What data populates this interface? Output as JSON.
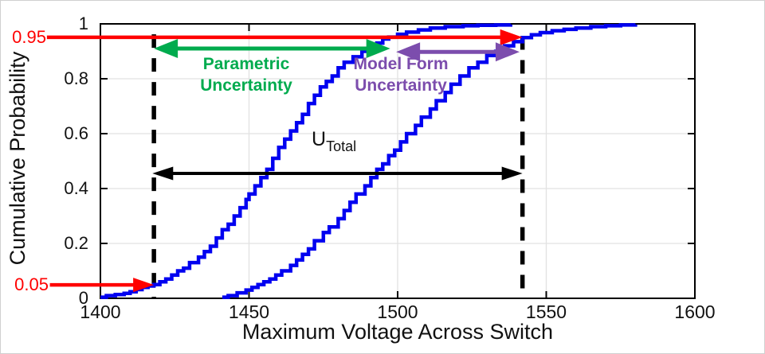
{
  "chart_data": {
    "type": "line",
    "subtype": "empirical_cdf_step",
    "title": "",
    "xlabel": "Maximum Voltage Across Switch",
    "ylabel": "Cumulative Probability",
    "xlim": [
      1400,
      1600
    ],
    "ylim": [
      0,
      1
    ],
    "grid": true,
    "legend": "none",
    "x_ticks": [
      1400,
      1450,
      1500,
      1550,
      1600
    ],
    "x_tick_labels": [
      "1400",
      "1450",
      "1500",
      "1550",
      "1600"
    ],
    "y_ticks": [
      0,
      0.2,
      0.4,
      0.6,
      0.8,
      1
    ],
    "y_tick_labels": [
      "0",
      "0.2",
      "0.4",
      "0.6",
      "0.8",
      "1"
    ],
    "quantile_labels": [
      {
        "name": "p95-label",
        "text": "0.95",
        "value": 0.95,
        "color": "#FF0000"
      },
      {
        "name": "p05-label",
        "text": "0.05",
        "value": 0.05,
        "color": "#FF0000"
      }
    ],
    "series": [
      {
        "name": "cdf-parametric-only",
        "color": "#0000F0",
        "line_width": 4.5,
        "points": [
          [
            1400,
            0.004
          ],
          [
            1402,
            0.01
          ],
          [
            1405,
            0.014
          ],
          [
            1408,
            0.018
          ],
          [
            1410,
            0.024
          ],
          [
            1412,
            0.032
          ],
          [
            1414,
            0.04
          ],
          [
            1416,
            0.045
          ],
          [
            1418,
            0.05
          ],
          [
            1420,
            0.06
          ],
          [
            1422,
            0.07
          ],
          [
            1424,
            0.085
          ],
          [
            1426,
            0.1
          ],
          [
            1428,
            0.11
          ],
          [
            1430,
            0.13
          ],
          [
            1433,
            0.15
          ],
          [
            1435,
            0.17
          ],
          [
            1437,
            0.19
          ],
          [
            1439,
            0.22
          ],
          [
            1441,
            0.25
          ],
          [
            1443,
            0.27
          ],
          [
            1445,
            0.3
          ],
          [
            1447,
            0.33
          ],
          [
            1449,
            0.36
          ],
          [
            1450,
            0.38
          ],
          [
            1452,
            0.41
          ],
          [
            1454,
            0.44
          ],
          [
            1456,
            0.47
          ],
          [
            1458,
            0.51
          ],
          [
            1460,
            0.55
          ],
          [
            1462,
            0.58
          ],
          [
            1464,
            0.61
          ],
          [
            1466,
            0.64
          ],
          [
            1468,
            0.67
          ],
          [
            1470,
            0.71
          ],
          [
            1472,
            0.74
          ],
          [
            1474,
            0.77
          ],
          [
            1476,
            0.79
          ],
          [
            1478,
            0.81
          ],
          [
            1480,
            0.84
          ],
          [
            1482,
            0.86
          ],
          [
            1485,
            0.88
          ],
          [
            1488,
            0.9
          ],
          [
            1491,
            0.92
          ],
          [
            1493,
            0.93
          ],
          [
            1495,
            0.945
          ],
          [
            1497,
            0.952
          ],
          [
            1500,
            0.962
          ],
          [
            1503,
            0.97
          ],
          [
            1507,
            0.978
          ],
          [
            1511,
            0.985
          ],
          [
            1516,
            0.99
          ],
          [
            1522,
            0.993
          ],
          [
            1527,
            0.995
          ],
          [
            1533,
            0.996
          ],
          [
            1538,
            0.998
          ]
        ]
      },
      {
        "name": "cdf-total-with-model-form",
        "color": "#0000F0",
        "line_width": 4.5,
        "points": [
          [
            1441,
            0.004
          ],
          [
            1443,
            0.01
          ],
          [
            1446,
            0.02
          ],
          [
            1449,
            0.03
          ],
          [
            1451,
            0.04
          ],
          [
            1453,
            0.05
          ],
          [
            1455,
            0.06
          ],
          [
            1457,
            0.07
          ],
          [
            1459,
            0.085
          ],
          [
            1461,
            0.1
          ],
          [
            1464,
            0.12
          ],
          [
            1466,
            0.14
          ],
          [
            1468,
            0.16
          ],
          [
            1470,
            0.18
          ],
          [
            1472,
            0.21
          ],
          [
            1475,
            0.24
          ],
          [
            1477,
            0.26
          ],
          [
            1480,
            0.29
          ],
          [
            1482,
            0.32
          ],
          [
            1484,
            0.35
          ],
          [
            1486,
            0.38
          ],
          [
            1489,
            0.41
          ],
          [
            1491,
            0.44
          ],
          [
            1493,
            0.47
          ],
          [
            1495,
            0.49
          ],
          [
            1497,
            0.52
          ],
          [
            1499,
            0.54
          ],
          [
            1501,
            0.57
          ],
          [
            1503,
            0.6
          ],
          [
            1506,
            0.63
          ],
          [
            1508,
            0.66
          ],
          [
            1511,
            0.69
          ],
          [
            1513,
            0.72
          ],
          [
            1516,
            0.75
          ],
          [
            1518,
            0.78
          ],
          [
            1521,
            0.81
          ],
          [
            1524,
            0.84
          ],
          [
            1527,
            0.86
          ],
          [
            1530,
            0.885
          ],
          [
            1533,
            0.9
          ],
          [
            1536,
            0.92
          ],
          [
            1539,
            0.935
          ],
          [
            1542,
            0.95
          ],
          [
            1545,
            0.96
          ],
          [
            1548,
            0.968
          ],
          [
            1552,
            0.975
          ],
          [
            1556,
            0.98
          ],
          [
            1560,
            0.985
          ],
          [
            1565,
            0.99
          ],
          [
            1570,
            0.993
          ],
          [
            1575,
            0.996
          ],
          [
            1580,
            0.998
          ]
        ]
      }
    ],
    "reference_lines": [
      {
        "name": "lower-bound-dashed-line",
        "x": 1418,
        "p_top": 0.962,
        "color": "#000000",
        "style": "dashed"
      },
      {
        "name": "upper-bound-dashed-line",
        "x": 1542,
        "p_top": 0.955,
        "color": "#000000",
        "style": "dashed"
      }
    ],
    "arrows": [
      {
        "name": "quantile-95-arrow",
        "color": "#FF0000",
        "p": 0.951,
        "x1": 1382,
        "x2": 1542,
        "heads": "end",
        "width": 4.5,
        "head_l": 28,
        "head_w": 20
      },
      {
        "name": "quantile-05-arrow",
        "color": "#FF0000",
        "p": 0.049,
        "x1": 1383,
        "x2": 1418,
        "heads": "end",
        "width": 4.5,
        "head_l": 26,
        "head_w": 18
      },
      {
        "name": "parametric-uncertainty-arrow",
        "color": "#00AB4E",
        "p": 0.91,
        "x1": 1418,
        "x2": 1497.5,
        "heads": "both",
        "width": 5,
        "head_l": 30,
        "head_w": 24
      },
      {
        "name": "model-form-uncertainty-arrow",
        "color": "#7C4DAD",
        "p": 0.898,
        "x1": 1499.5,
        "x2": 1541,
        "heads": "both",
        "width": 5,
        "head_l": 30,
        "head_w": 24
      },
      {
        "name": "total-uncertainty-arrow",
        "color": "#000000",
        "p": 0.455,
        "x1": 1417.5,
        "x2": 1542,
        "heads": "both",
        "width": 4,
        "head_l": 26,
        "head_w": 17
      }
    ],
    "annotations": {
      "parametric": {
        "text": "Parametric\nUncertainty",
        "color": "#00AB4E"
      },
      "model_form": {
        "text": "Model Form\nUncertainty",
        "color": "#7C4DAD"
      },
      "u_total": {
        "main": "U",
        "sub": "Total",
        "color": "#000000"
      }
    },
    "colors": {
      "curve": "#0000F0",
      "quantile": "#FF0000",
      "parametric": "#00AB4E",
      "model_form": "#7C4DAD",
      "total": "#000000",
      "gridline": "#E2E2E2",
      "axis": "#000000"
    }
  }
}
